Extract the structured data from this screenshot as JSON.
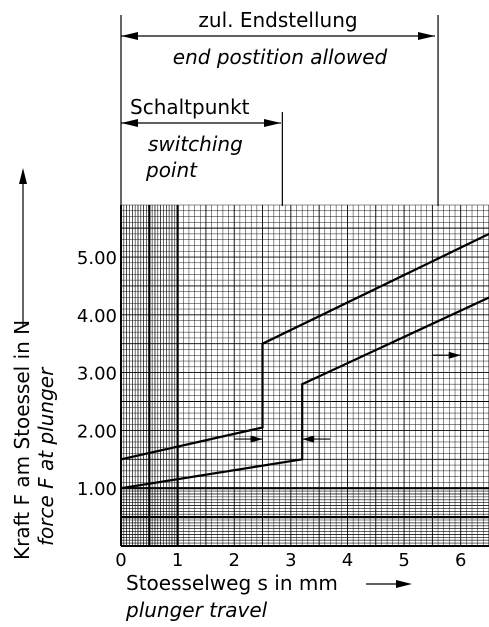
{
  "chart_data": {
    "type": "line",
    "annotations": {
      "end_position_de": "zul. Endstellung",
      "end_position_en": "end postition allowed",
      "switching_point_de": "Schaltpunkt",
      "switching_point_en_1": "switching",
      "switching_point_en_2": "point"
    },
    "xlabel_de": "Stoesselweg s in mm",
    "xlabel_en": "plunger travel",
    "ylabel_de": "Kraft F am Stoessel in N",
    "ylabel_en": "force F at plunger",
    "xlim": [
      0,
      6.5
    ],
    "ylim": [
      0,
      5.9
    ],
    "x_ticks": [
      {
        "value": 0,
        "label": "0"
      },
      {
        "value": 1,
        "label": "1"
      },
      {
        "value": 2,
        "label": "2"
      },
      {
        "value": 3,
        "label": "3"
      },
      {
        "value": 4,
        "label": "4"
      },
      {
        "value": 5,
        "label": "5"
      },
      {
        "value": 6,
        "label": "6"
      }
    ],
    "y_ticks": [
      {
        "value": 1,
        "label": "1.00"
      },
      {
        "value": 2,
        "label": "2.00"
      },
      {
        "value": 3,
        "label": "3.00"
      },
      {
        "value": 4,
        "label": "4.00"
      },
      {
        "value": 5,
        "label": "5.00"
      }
    ],
    "grid": true,
    "series": [
      {
        "x": [
          0,
          2.5,
          2.5,
          6.5
        ],
        "y": [
          1.5,
          2.05,
          3.5,
          5.4
        ]
      },
      {
        "x": [
          0,
          3.2,
          3.2,
          6.5
        ],
        "y": [
          1.0,
          1.5,
          2.8,
          4.3
        ]
      }
    ],
    "hysteresis_marks": [
      {
        "x1": 2.5,
        "x2": 3.2,
        "y": 1.85
      },
      {
        "x1": 6.0,
        "x2": 6.5,
        "y": 3.3
      }
    ],
    "end_position_x": 5.6,
    "switching_point_x": 2.85
  }
}
